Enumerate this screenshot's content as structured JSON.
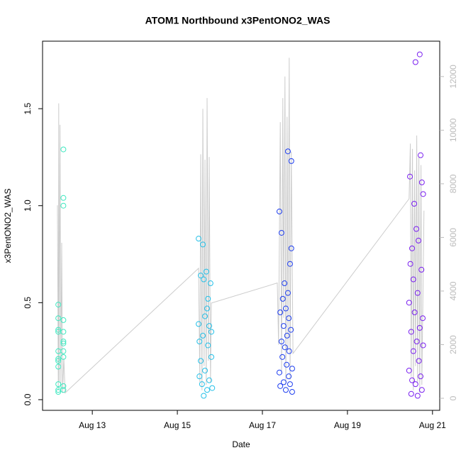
{
  "chart_data": {
    "type": "scatter",
    "title": "ATOM1 Northbound x3PentONO2_WAS",
    "x_label": "Date",
    "y_label": "x3PentONO2_WAS",
    "xlim": [
      11.83,
      21.17
    ],
    "xticks": [
      {
        "value": 13,
        "label": "Aug 13"
      },
      {
        "value": 15,
        "label": "Aug 15"
      },
      {
        "value": 17,
        "label": "Aug 17"
      },
      {
        "value": 19,
        "label": "Aug 19"
      },
      {
        "value": 21,
        "label": "Aug 21"
      }
    ],
    "ylim": [
      -0.055,
      1.848
    ],
    "yticks": [
      {
        "value": 0,
        "label": "0.0"
      },
      0.5,
      {
        "value": 1,
        "label": "1.0"
      },
      1.5
    ],
    "y2lim": [
      -450,
      13320
    ],
    "y2ticks": [
      0,
      2000,
      4000,
      6000,
      8000,
      10000,
      12000
    ],
    "series": [
      {
        "type": "line",
        "axis": "y2",
        "color": "#cccccc",
        "x": [
          12.18,
          12.2,
          12.21,
          12.22,
          12.24,
          12.26,
          12.28,
          12.3,
          12.33,
          12.36,
          15.5,
          15.53,
          15.55,
          15.58,
          15.6,
          15.63,
          15.65,
          15.68,
          15.7,
          15.73,
          15.75,
          15.78,
          15.8,
          17.35,
          17.38,
          17.42,
          17.45,
          17.48,
          17.5,
          17.53,
          17.55,
          17.58,
          17.6,
          17.63,
          17.65,
          17.68,
          17.72,
          20.45,
          20.48,
          20.5,
          20.53,
          20.55,
          20.58,
          20.6,
          20.63,
          20.65,
          20.68,
          20.7,
          20.73,
          20.75,
          20.8
        ],
        "values": [
          7200,
          300,
          11000,
          600,
          10200,
          400,
          5800,
          200,
          1500,
          200,
          4850,
          600,
          9100,
          300,
          10800,
          1200,
          8900,
          500,
          11200,
          1400,
          9000,
          600,
          3550,
          4300,
          2000,
          10300,
          900,
          11200,
          3000,
          12000,
          500,
          10500,
          1800,
          12700,
          700,
          9200,
          1670,
          7440,
          9500,
          800,
          9300,
          300,
          8500,
          1200,
          9800,
          600,
          9000,
          200,
          8700,
          500,
          7000
        ]
      },
      {
        "type": "scatter",
        "color": "#3fe8c0",
        "x": [
          12.2,
          12.2,
          12.2,
          12.2,
          12.2,
          12.2,
          12.2,
          12.2,
          12.2,
          12.2,
          12.2,
          12.32,
          12.32,
          12.32,
          12.32,
          12.32,
          12.32,
          12.32,
          12.32,
          12.32,
          12.32,
          12.32
        ],
        "values": [
          0.49,
          0.42,
          0.36,
          0.35,
          0.25,
          0.21,
          0.2,
          0.17,
          0.08,
          0.05,
          0.04,
          1.29,
          1.04,
          1.0,
          0.41,
          0.35,
          0.3,
          0.29,
          0.25,
          0.22,
          0.07,
          0.05
        ]
      },
      {
        "type": "scatter",
        "color": "#25c0e8",
        "x": [
          15.5,
          15.5,
          15.52,
          15.52,
          15.55,
          15.55,
          15.58,
          15.6,
          15.6,
          15.62,
          15.62,
          15.65,
          15.65,
          15.68,
          15.7,
          15.7,
          15.72,
          15.72,
          15.75,
          15.75,
          15.78,
          15.8,
          15.8,
          15.82
        ],
        "values": [
          0.83,
          0.39,
          0.3,
          0.12,
          0.64,
          0.2,
          0.08,
          0.8,
          0.33,
          0.62,
          0.02,
          0.43,
          0.15,
          0.66,
          0.47,
          0.05,
          0.52,
          0.28,
          0.38,
          0.1,
          0.6,
          0.35,
          0.22,
          0.06
        ]
      },
      {
        "type": "scatter",
        "color": "#1f3ff0",
        "x": [
          17.4,
          17.4,
          17.42,
          17.42,
          17.45,
          17.45,
          17.47,
          17.48,
          17.5,
          17.5,
          17.52,
          17.53,
          17.55,
          17.55,
          17.57,
          17.58,
          17.6,
          17.6,
          17.62,
          17.62,
          17.63,
          17.65,
          17.65,
          17.67,
          17.68,
          17.68,
          17.7,
          17.7
        ],
        "values": [
          0.97,
          0.14,
          0.45,
          0.07,
          0.86,
          0.3,
          0.22,
          0.52,
          0.38,
          0.09,
          0.6,
          0.27,
          0.47,
          0.05,
          0.18,
          0.33,
          1.28,
          0.55,
          0.12,
          0.42,
          0.25,
          0.7,
          0.08,
          0.36,
          1.23,
          0.78,
          0.16,
          0.04
        ]
      },
      {
        "type": "scatter",
        "color": "#7a1ff0",
        "x": [
          20.45,
          20.45,
          20.47,
          20.48,
          20.5,
          20.5,
          20.52,
          20.52,
          20.55,
          20.55,
          20.57,
          20.58,
          20.6,
          20.6,
          20.62,
          20.63,
          20.65,
          20.65,
          20.67,
          20.68,
          20.7,
          20.7,
          20.72,
          20.72,
          20.74,
          20.75,
          20.75,
          20.77,
          20.78,
          20.78
        ],
        "values": [
          0.5,
          0.15,
          1.15,
          0.7,
          0.03,
          0.35,
          0.78,
          0.1,
          0.62,
          0.25,
          1.01,
          0.45,
          1.74,
          0.08,
          0.88,
          0.3,
          0.55,
          0.02,
          0.82,
          0.2,
          1.78,
          0.37,
          1.26,
          0.12,
          0.67,
          1.12,
          0.05,
          0.42,
          1.06,
          0.28
        ]
      }
    ]
  }
}
